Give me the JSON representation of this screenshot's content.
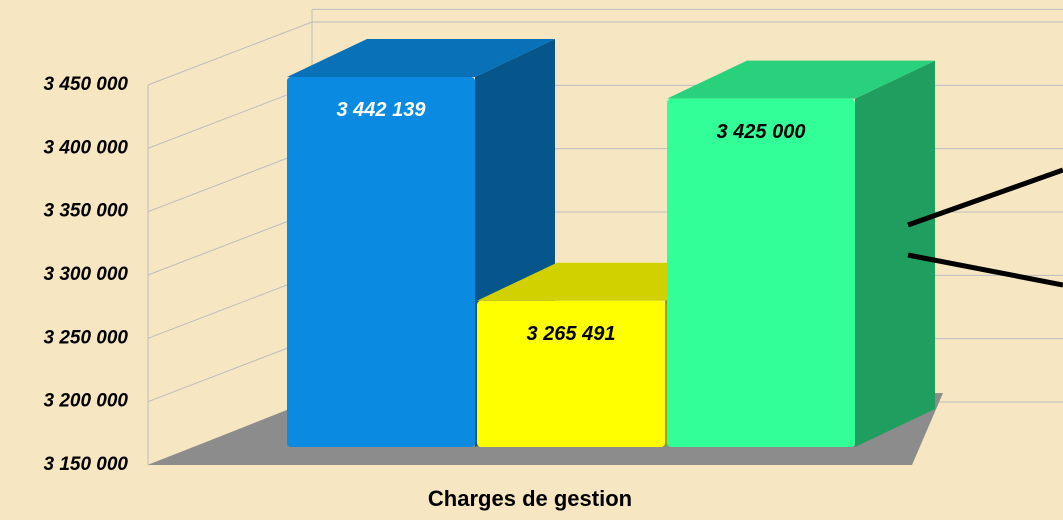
{
  "chart_data": {
    "type": "bar3d",
    "categories": [
      "Charges de gestion"
    ],
    "series": [
      {
        "color": "#0a8ae0",
        "label_color": "#ffffff",
        "values": [
          3442139
        ],
        "value_labels": [
          "3 442 139"
        ]
      },
      {
        "color": "#ffff00",
        "label_color": "#000000",
        "values": [
          3265491
        ],
        "value_labels": [
          "3 265 491"
        ]
      },
      {
        "color": "#33ff99",
        "label_color": "#000000",
        "values": [
          3425000
        ],
        "value_labels": [
          "3 425 000"
        ]
      }
    ],
    "ylim": [
      3150000,
      3460000
    ],
    "yticks": [
      {
        "value": 3150000,
        "label": "3 150 000"
      },
      {
        "value": 3200000,
        "label": "3 200 000"
      },
      {
        "value": 3250000,
        "label": "3 250 000"
      },
      {
        "value": 3300000,
        "label": "3 300 000"
      },
      {
        "value": 3350000,
        "label": "3 350 000"
      },
      {
        "value": 3400000,
        "label": "3 400 000"
      },
      {
        "value": 3450000,
        "label": "3 450 000"
      }
    ],
    "grid": true
  }
}
